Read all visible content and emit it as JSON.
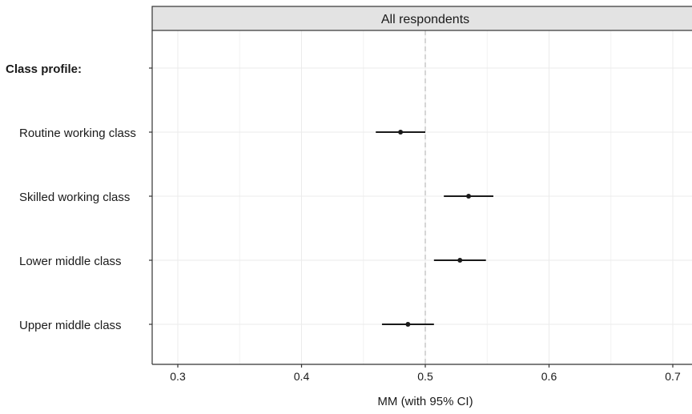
{
  "chart_data": {
    "type": "scatter",
    "panel_title": "All respondents",
    "xlabel": "MM (with 95% CI)",
    "ylabel": "",
    "xlim": [
      0.28,
      0.72
    ],
    "x_ticks": [
      0.3,
      0.4,
      0.5,
      0.6,
      0.7
    ],
    "x_tick_labels": [
      "0.3",
      "0.4",
      "0.5",
      "0.6",
      "0.7"
    ],
    "reference_line": 0.5,
    "grid": true,
    "categories": [
      "Class profile:",
      "Routine working class",
      "Skilled working class",
      "Lower middle class",
      "Upper middle class"
    ],
    "group_header": "Class profile:",
    "points": [
      {
        "label": "Routine working class",
        "estimate": 0.48,
        "lower": 0.46,
        "upper": 0.5
      },
      {
        "label": "Skilled working class",
        "estimate": 0.535,
        "lower": 0.515,
        "upper": 0.555
      },
      {
        "label": "Lower middle class",
        "estimate": 0.528,
        "lower": 0.507,
        "upper": 0.549
      },
      {
        "label": "Upper middle class",
        "estimate": 0.486,
        "lower": 0.465,
        "upper": 0.507
      }
    ]
  }
}
